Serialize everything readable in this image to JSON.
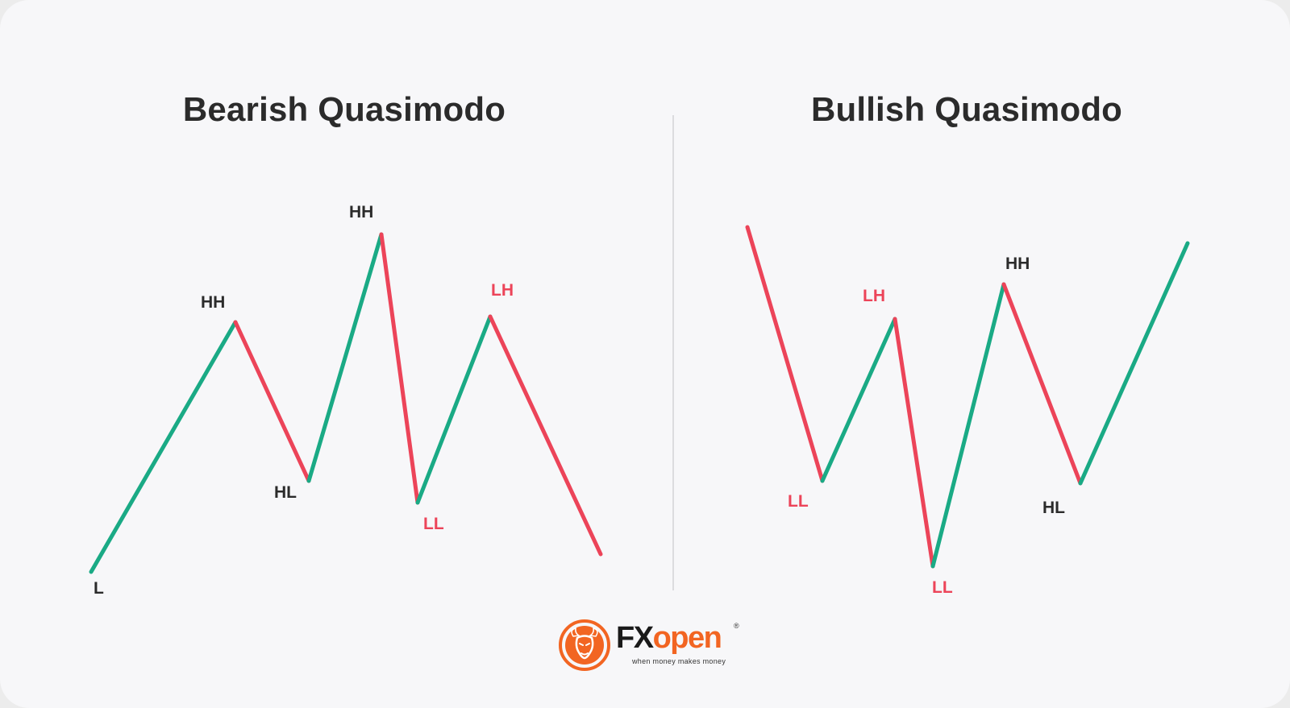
{
  "colors": {
    "bull": "#1aaa85",
    "bear": "#ec4459",
    "neutral_label": "#2b2b2b",
    "divider": "#dcdcdf",
    "brand": "#f26522"
  },
  "panels": [
    {
      "title": "Bearish Quasimodo",
      "labels": [
        "L",
        "HH",
        "HL",
        "HH",
        "LL",
        "LH"
      ]
    },
    {
      "title": "Bullish Quasimodo",
      "labels": [
        "LL",
        "LH",
        "LL",
        "HH",
        "HL"
      ]
    }
  ],
  "logo": {
    "brand_fx": "FX",
    "brand_open": "open",
    "tagline": "when money makes money",
    "registered": "®",
    "icon": "bull-head-icon"
  }
}
